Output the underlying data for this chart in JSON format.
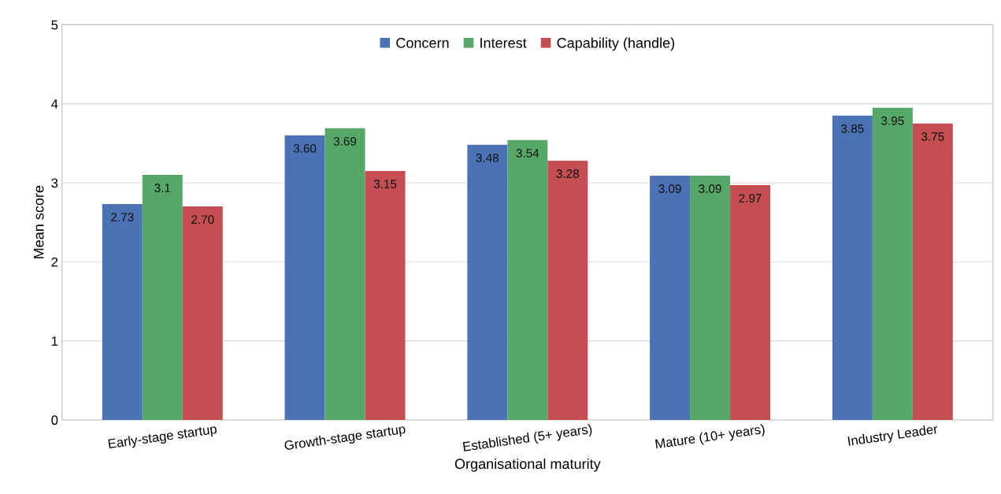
{
  "chart_data": {
    "type": "bar",
    "xlabel": "Organisational maturity",
    "ylabel": "Mean score",
    "categories": [
      "Early-stage startup",
      "Growth-stage startup",
      "Established (5+ years)",
      "Mature (10+ years)",
      "Industry Leader"
    ],
    "series": [
      {
        "name": "Concern",
        "color": "#4a72b5",
        "values": [
          2.73,
          3.6,
          3.48,
          3.09,
          3.85
        ],
        "value_labels": [
          "2.73",
          "3.60",
          "3.48",
          "3.09",
          "3.85"
        ]
      },
      {
        "name": "Interest",
        "color": "#55a868",
        "values": [
          3.1,
          3.69,
          3.54,
          3.09,
          3.95
        ],
        "value_labels": [
          "3.1",
          "3.69",
          "3.54",
          "3.09",
          "3.95"
        ]
      },
      {
        "name": "Capability (handle)",
        "color": "#c44e52",
        "values": [
          2.7,
          3.15,
          3.28,
          2.97,
          3.75
        ],
        "value_labels": [
          "2.70",
          "3.15",
          "3.28",
          "2.97",
          "3.75"
        ]
      }
    ],
    "ylim": [
      0,
      5
    ],
    "yticks": [
      0,
      1,
      2,
      3,
      4,
      5
    ],
    "grid": "y",
    "legend": "top"
  }
}
